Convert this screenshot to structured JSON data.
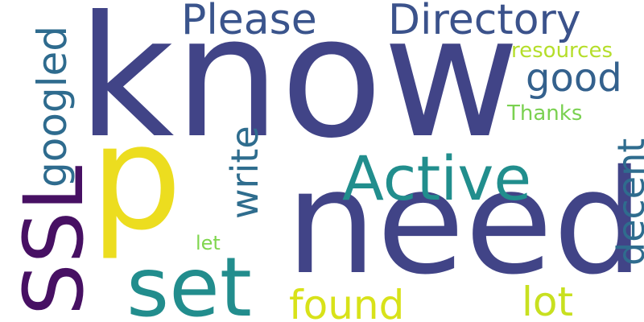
{
  "words": [
    {
      "text": "know",
      "color": "#414487"
    },
    {
      "text": "need",
      "color": "#414487"
    },
    {
      "text": "p",
      "color": "#ecdd1f"
    },
    {
      "text": "SSL",
      "color": "#471063"
    },
    {
      "text": "set",
      "color": "#228d8d"
    },
    {
      "text": "Active",
      "color": "#218e8d"
    },
    {
      "text": "Please",
      "color": "#3a548c"
    },
    {
      "text": "Directory",
      "color": "#3b528b"
    },
    {
      "text": "googled",
      "color": "#2e6b8e"
    },
    {
      "text": "good",
      "color": "#34618d"
    },
    {
      "text": "write",
      "color": "#2f6d8e"
    },
    {
      "text": "decent",
      "color": "#2f6c8e"
    },
    {
      "text": "found",
      "color": "#d8e219"
    },
    {
      "text": "lot",
      "color": "#c8e020"
    },
    {
      "text": "resources",
      "color": "#b5de2b"
    },
    {
      "text": "Thanks",
      "color": "#7ad151"
    },
    {
      "text": "let",
      "color": "#80d64f"
    }
  ]
}
